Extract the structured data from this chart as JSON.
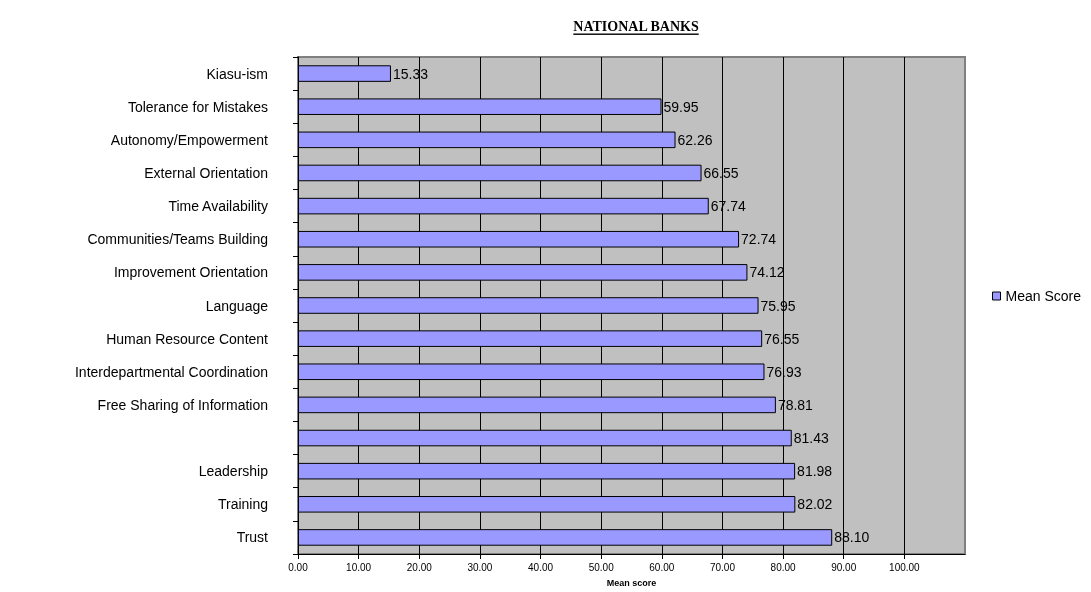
{
  "chart_data": {
    "type": "bar",
    "orientation": "horizontal",
    "title": "NATIONAL BANKS",
    "xlabel": "Mean score",
    "categories": [
      "Kiasu-ism",
      "Tolerance for Mistakes",
      "Autonomy/Empowerment",
      "External Orientation",
      "Time Availability",
      "Communities/Teams Building",
      "Improvement Orientation",
      "Language",
      "Human Resource Content",
      "Interdepartmental Coordination",
      "Free Sharing of Information",
      null,
      "Leadership",
      "Training",
      "Trust"
    ],
    "series": [
      {
        "name": "Mean Score",
        "color": "#9999ff",
        "values": [
          15.33,
          59.95,
          62.26,
          66.55,
          67.74,
          72.74,
          74.12,
          75.95,
          76.55,
          76.93,
          78.81,
          81.43,
          81.98,
          82.02,
          88.1
        ],
        "value_labels": [
          "15.33",
          "59.95",
          "62.26",
          "66.55",
          "67.74",
          "72.74",
          "74.12",
          "75.95",
          "76.55",
          "76.93",
          "78.81",
          "81.43",
          "81.98",
          "82.02",
          "88.10"
        ]
      }
    ],
    "xlim": [
      0,
      110
    ],
    "xticks": [
      {
        "value": 0,
        "label": "0.00"
      },
      {
        "value": 10,
        "label": "10.00"
      },
      {
        "value": 20,
        "label": "20.00"
      },
      {
        "value": 30,
        "label": "30.00"
      },
      {
        "value": 40,
        "label": "40.00"
      },
      {
        "value": 50,
        "label": "50.00"
      },
      {
        "value": 60,
        "label": "60.00"
      },
      {
        "value": 70,
        "label": "70.00"
      },
      {
        "value": 80,
        "label": "80.00"
      },
      {
        "value": 90,
        "label": "90.00"
      },
      {
        "value": 100,
        "label": "100.00"
      }
    ],
    "grid": "x",
    "legend": "right"
  }
}
